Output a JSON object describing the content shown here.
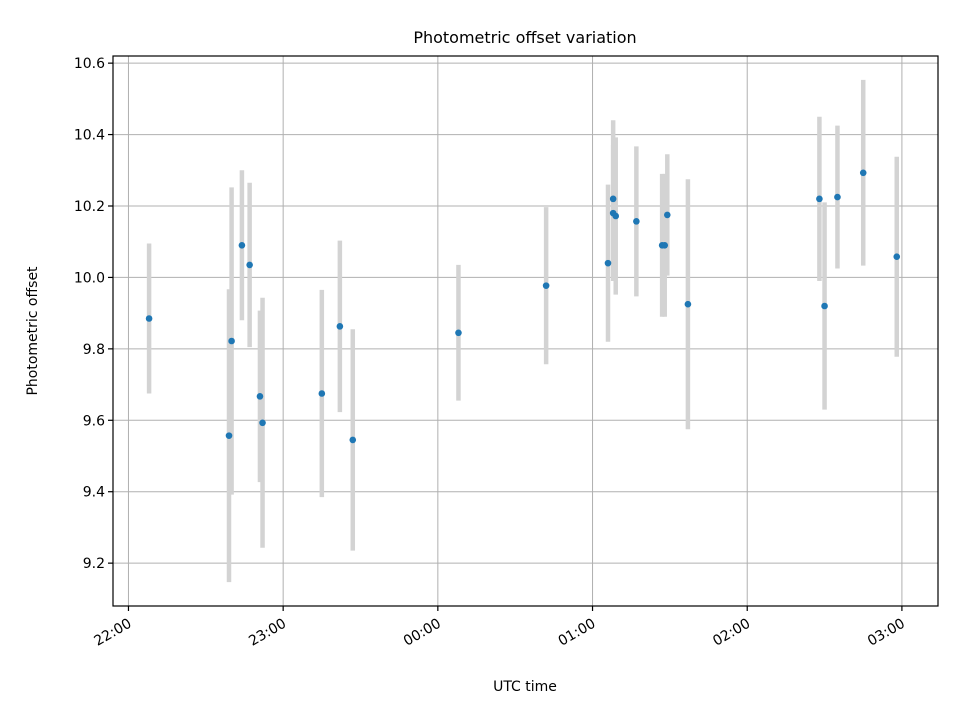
{
  "chart_data": {
    "type": "scatter",
    "title": "Photometric offset variation",
    "xlabel": "UTC time",
    "ylabel": "Photometric offset",
    "x_tick_labels": [
      "22:00",
      "23:00",
      "00:00",
      "01:00",
      "02:00",
      "03:00"
    ],
    "y_tick_labels": [
      "9.2",
      "9.4",
      "9.6",
      "9.8",
      "10.0",
      "10.2",
      "10.4",
      "10.6"
    ],
    "xlim_minutes_after_2200": [
      -6,
      314
    ],
    "ylim": [
      9.08,
      10.62
    ],
    "grid": true,
    "legend": "none",
    "colors": {
      "points": "#1f77b4",
      "errorbars": "#d3d3d3"
    },
    "points": [
      {
        "t": "22:08",
        "y": 9.885,
        "err": 0.21
      },
      {
        "t": "22:39",
        "y": 9.557,
        "err": 0.41
      },
      {
        "t": "22:40",
        "y": 9.822,
        "err": 0.43
      },
      {
        "t": "22:44",
        "y": 10.09,
        "err": 0.21
      },
      {
        "t": "22:47",
        "y": 10.035,
        "err": 0.23
      },
      {
        "t": "22:51",
        "y": 9.667,
        "err": 0.24
      },
      {
        "t": "22:52",
        "y": 9.593,
        "err": 0.35
      },
      {
        "t": "23:15",
        "y": 9.675,
        "err": 0.29
      },
      {
        "t": "23:22",
        "y": 9.863,
        "err": 0.24
      },
      {
        "t": "23:27",
        "y": 9.545,
        "err": 0.31
      },
      {
        "t": "00:08",
        "y": 9.845,
        "err": 0.19
      },
      {
        "t": "00:42",
        "y": 9.977,
        "err": 0.22
      },
      {
        "t": "01:06",
        "y": 10.04,
        "err": 0.22
      },
      {
        "t": "01:08",
        "y": 10.18,
        "err": 0.19
      },
      {
        "t": "01:08",
        "y": 10.22,
        "err": 0.22
      },
      {
        "t": "01:09",
        "y": 10.172,
        "err": 0.22
      },
      {
        "t": "01:17",
        "y": 10.157,
        "err": 0.21
      },
      {
        "t": "01:27",
        "y": 10.09,
        "err": 0.2
      },
      {
        "t": "01:28",
        "y": 10.09,
        "err": 0.2
      },
      {
        "t": "01:29",
        "y": 10.175,
        "err": 0.17
      },
      {
        "t": "01:37",
        "y": 9.925,
        "err": 0.35
      },
      {
        "t": "02:28",
        "y": 10.22,
        "err": 0.23
      },
      {
        "t": "02:30",
        "y": 9.92,
        "err": 0.29
      },
      {
        "t": "02:35",
        "y": 10.225,
        "err": 0.2
      },
      {
        "t": "02:45",
        "y": 10.293,
        "err": 0.26
      },
      {
        "t": "02:58",
        "y": 10.058,
        "err": 0.28
      }
    ]
  }
}
